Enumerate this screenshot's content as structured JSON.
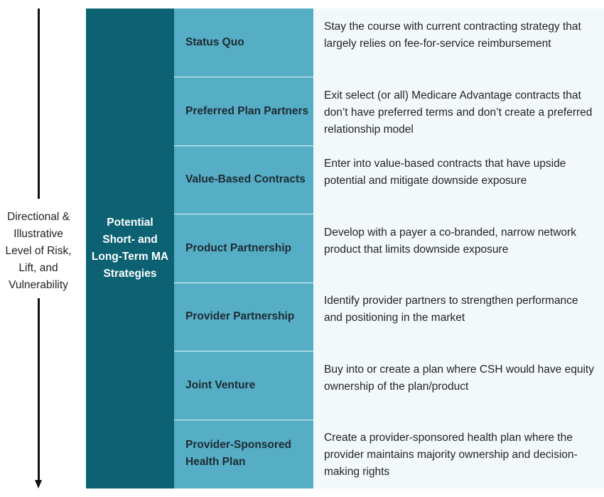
{
  "axis": {
    "label": "Directional & Illustrative Level of Risk, Lift, and Vulnerability"
  },
  "category": {
    "label": "Potential Short- and Long-Term MA Strategies"
  },
  "colors": {
    "dark_teal": "#0c6272",
    "light_teal": "#56aec6",
    "pale_background": "#f3f9fb"
  },
  "strategies": [
    {
      "name": "Status Quo",
      "description": "Stay the course with current contracting strategy that largely relies on fee-for-service reimbursement"
    },
    {
      "name": "Preferred Plan Partners",
      "description": "Exit select (or all) Medicare Advantage contracts that don’t have preferred terms and don’t create a preferred relationship model"
    },
    {
      "name": "Value-Based Contracts",
      "description": "Enter into value-based contracts that have upside potential and mitigate downside exposure"
    },
    {
      "name": "Product Partnership",
      "description": "Develop with a payer a co-branded, narrow network product that limits downside exposure"
    },
    {
      "name": "Provider Partnership",
      "description": "Identify provider partners to strengthen performance and positioning in the market"
    },
    {
      "name": "Joint Venture",
      "description": "Buy into or create a plan where CSH would have equity ownership of the plan/product"
    },
    {
      "name": "Provider-Sponsored Health Plan",
      "description": "Create a provider-sponsored health plan where the provider maintains majority ownership and decision-making rights"
    }
  ]
}
